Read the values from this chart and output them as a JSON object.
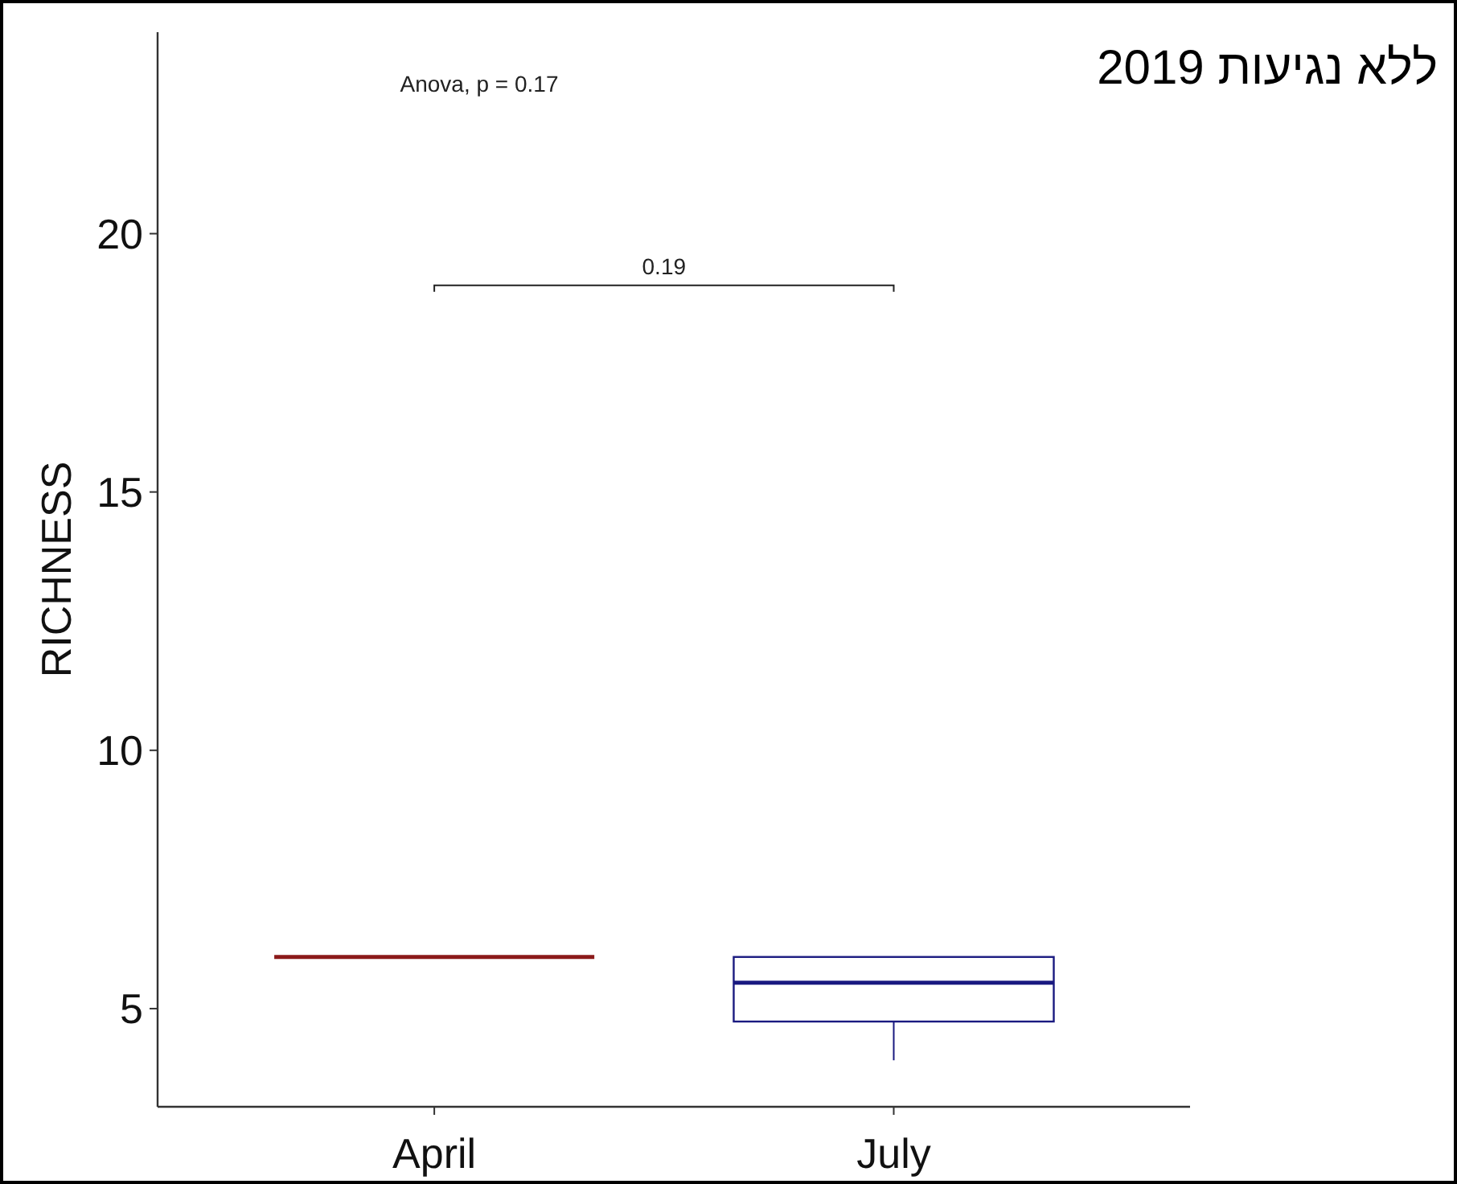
{
  "chart_data": {
    "type": "box",
    "title": "ללא נגיעות 2019",
    "ylabel": "RICHNESS",
    "categories": [
      "April",
      "July"
    ],
    "series": [
      {
        "color": "#8b1a1a",
        "boxes": [
          {
            "low": 6,
            "q1": 6,
            "median": 6,
            "q3": 6,
            "high": 6
          },
          null
        ]
      },
      {
        "color": "#1a1a80",
        "boxes": [
          null,
          {
            "low": 4,
            "q1": 4.75,
            "median": 5.5,
            "q3": 6,
            "high": 6
          }
        ]
      }
    ],
    "ylim": [
      3.1,
      23.9
    ],
    "yticks": [
      5,
      10,
      15,
      20
    ],
    "grid": false,
    "annotations": [
      "Anova, p = 0.17",
      "0.19"
    ]
  }
}
